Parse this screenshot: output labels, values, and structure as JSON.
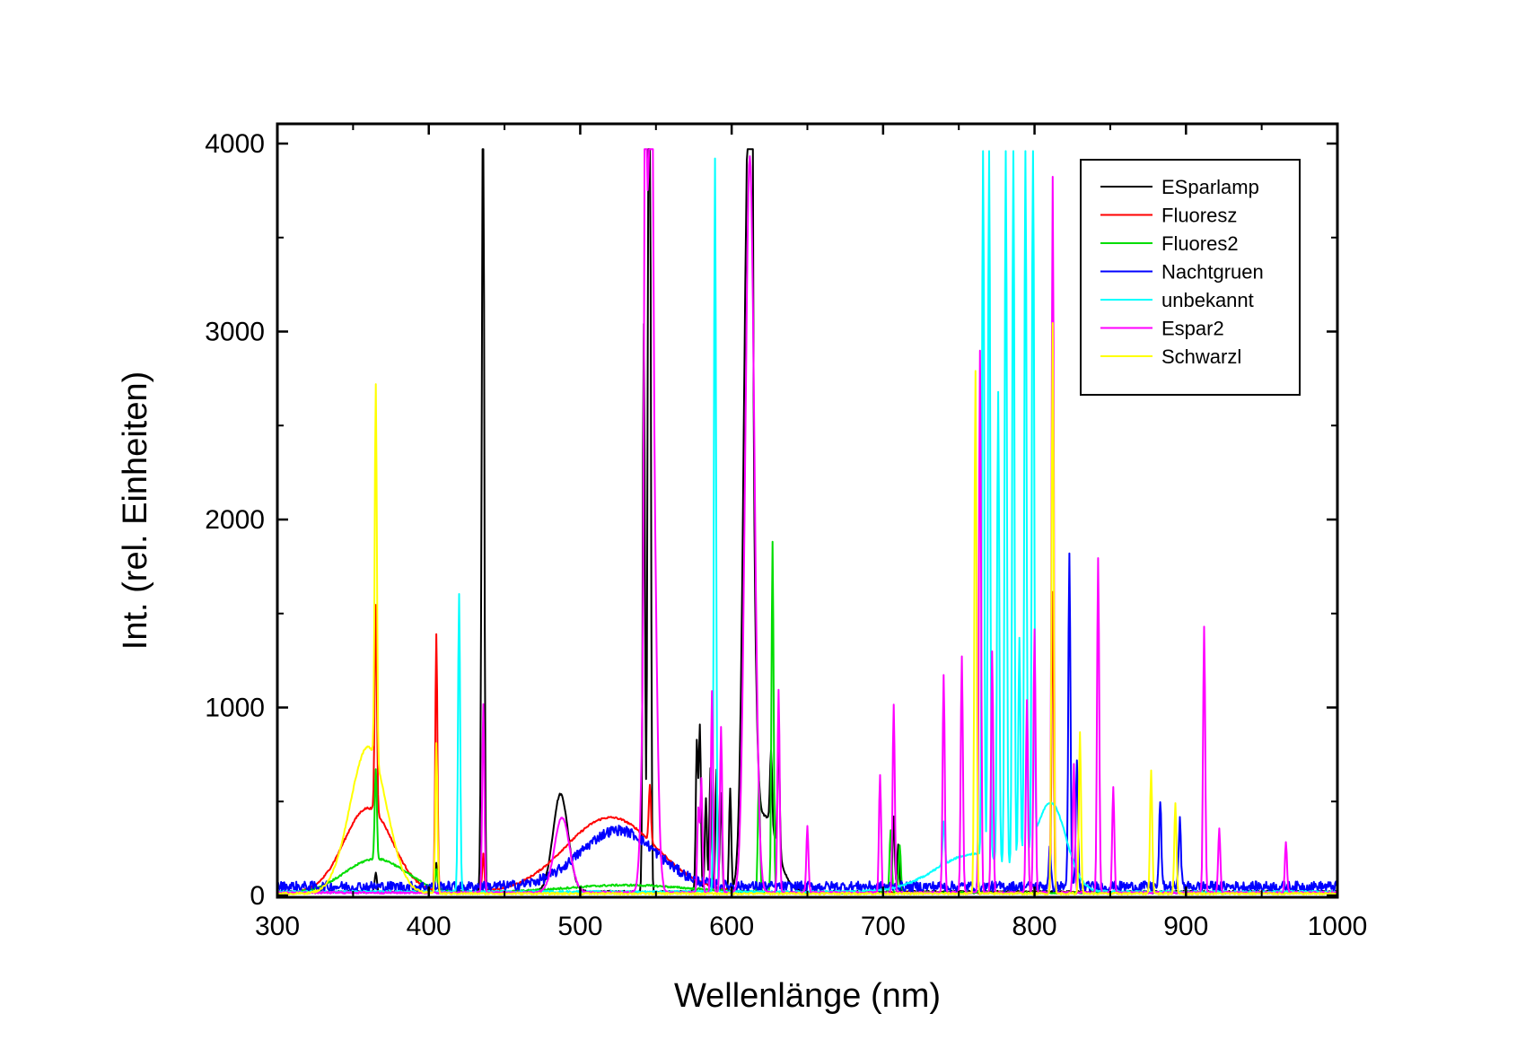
{
  "chart_data": {
    "type": "line",
    "title": "",
    "xlabel": "Wellenlänge (nm)",
    "ylabel": "Int. (rel. Einheiten)",
    "xlim": [
      300,
      1000
    ],
    "ylim": [
      0,
      4000
    ],
    "x_ticks": [
      300,
      400,
      500,
      600,
      700,
      800,
      900,
      1000
    ],
    "y_ticks": [
      0,
      1000,
      2000,
      3000,
      4000
    ],
    "x_tick_labels": [
      "300",
      "400",
      "500",
      "600",
      "700",
      "800",
      "900",
      "1000"
    ],
    "y_tick_labels": [
      "0",
      "1000",
      "2000",
      "3000",
      "4000"
    ],
    "legend_position": "top-right",
    "grid": false,
    "series": [
      {
        "name": "ESparlamp",
        "color": "#000000",
        "baseline": 15,
        "broad": [
          [
            487,
            520,
            5
          ],
          [
            611,
            3900,
            3
          ],
          [
            622,
            400,
            8
          ]
        ],
        "lines": [
          [
            365,
            100
          ],
          [
            405,
            150
          ],
          [
            435,
            1280
          ],
          [
            436,
            3880
          ],
          [
            542,
            3020
          ],
          [
            545,
            2900
          ],
          [
            546,
            3880
          ],
          [
            577,
            790
          ],
          [
            579,
            880
          ],
          [
            583,
            500
          ],
          [
            586,
            660
          ],
          [
            590,
            650
          ],
          [
            593,
            520
          ],
          [
            599,
            540
          ],
          [
            612,
            3900
          ],
          [
            613,
            3900
          ],
          [
            626,
            400
          ],
          [
            631,
            620
          ],
          [
            707,
            400
          ],
          [
            710,
            250
          ]
        ]
      },
      {
        "name": "Fluoresz",
        "color": "#ff0000",
        "baseline": 10,
        "broad": [
          [
            360,
            450,
            16
          ],
          [
            520,
            400,
            30
          ]
        ],
        "lines": [
          [
            365,
            1100
          ],
          [
            405,
            1370
          ],
          [
            436,
            200
          ],
          [
            546,
            300
          ],
          [
            812,
            1600
          ]
        ]
      },
      {
        "name": "Fluores2",
        "color": "#00dd00",
        "baseline": 10,
        "broad": [
          [
            365,
            180,
            20
          ],
          [
            530,
            40,
            40
          ]
        ],
        "lines": [
          [
            365,
            480
          ],
          [
            405,
            100
          ],
          [
            618,
            600
          ],
          [
            627,
            1860
          ],
          [
            705,
            330
          ],
          [
            711,
            250
          ]
        ]
      },
      {
        "name": "Nachtgruen",
        "color": "#0000ff",
        "baseline": 20,
        "noise": 55,
        "broad": [
          [
            525,
            300,
            25
          ]
        ],
        "lines": [
          [
            810,
            200
          ],
          [
            823,
            1750
          ],
          [
            828,
            680
          ],
          [
            883,
            470
          ],
          [
            896,
            380
          ]
        ]
      },
      {
        "name": "unbekannt",
        "color": "#00ffff",
        "baseline": 15,
        "broad": [
          [
            760,
            200,
            25
          ],
          [
            811,
            450,
            10
          ]
        ],
        "lines": [
          [
            420,
            1580
          ],
          [
            589,
            3900
          ],
          [
            766,
            3950
          ],
          [
            770,
            3950
          ],
          [
            776,
            2500
          ],
          [
            781,
            3950
          ],
          [
            786,
            3950
          ],
          [
            790,
            1200
          ],
          [
            794,
            3950
          ],
          [
            799,
            3950
          ],
          [
            740,
            230
          ]
        ],
        "clip": 3960
      },
      {
        "name": "Espar2",
        "color": "#ff00ff",
        "baseline": 10,
        "broad": [
          [
            488,
            400,
            5
          ],
          [
            546,
            3900,
            3
          ],
          [
            612,
            3920,
            3
          ]
        ],
        "lines": [
          [
            436,
            1000
          ],
          [
            543,
            2900
          ],
          [
            547,
            3940
          ],
          [
            578,
            440
          ],
          [
            580,
            600
          ],
          [
            587,
            1070
          ],
          [
            593,
            880
          ],
          [
            631,
            1080
          ],
          [
            650,
            350
          ],
          [
            698,
            630
          ],
          [
            707,
            1000
          ],
          [
            740,
            1160
          ],
          [
            752,
            1260
          ],
          [
            764,
            2880
          ],
          [
            772,
            1280
          ],
          [
            795,
            1020
          ],
          [
            800,
            1400
          ],
          [
            812,
            3810
          ],
          [
            826,
            680
          ],
          [
            842,
            1780
          ],
          [
            852,
            560
          ],
          [
            912,
            1410
          ],
          [
            922,
            340
          ],
          [
            966,
            270
          ]
        ]
      },
      {
        "name": "Schwarzl",
        "color": "#ffff00",
        "baseline": 5,
        "broad": [
          [
            360,
            780,
            12
          ]
        ],
        "lines": [
          [
            365,
            2000
          ],
          [
            405,
            800
          ],
          [
            761,
            2780
          ],
          [
            812,
            3040
          ],
          [
            830,
            860
          ],
          [
            877,
            660
          ],
          [
            893,
            480
          ]
        ]
      }
    ]
  }
}
